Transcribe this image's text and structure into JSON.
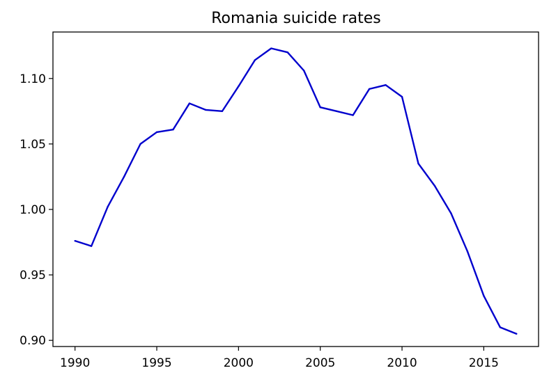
{
  "chart_data": {
    "type": "line",
    "title": "Romania suicide rates",
    "xlabel": "",
    "ylabel": "",
    "xlim": [
      1988.65,
      2018.35
    ],
    "ylim": [
      0.8953,
      1.1355
    ],
    "x_ticks": [
      1990,
      1995,
      2000,
      2005,
      2010,
      2015
    ],
    "x_tick_labels": [
      "1990",
      "1995",
      "2000",
      "2005",
      "2010",
      "2015"
    ],
    "y_ticks": [
      0.9,
      0.95,
      1.0,
      1.05,
      1.1
    ],
    "y_tick_labels": [
      "0.90",
      "0.95",
      "1.00",
      "1.05",
      "1.10"
    ],
    "grid": false,
    "legend": "none",
    "series": [
      {
        "color": "#0000cd",
        "x": [
          1990,
          1991,
          1992,
          1993,
          1994,
          1995,
          1996,
          1997,
          1998,
          1999,
          2000,
          2001,
          2002,
          2003,
          2004,
          2005,
          2006,
          2007,
          2008,
          2009,
          2010,
          2011,
          2012,
          2013,
          2014,
          2015,
          2016,
          2017
        ],
        "values": [
          0.976,
          0.972,
          1.002,
          1.025,
          1.05,
          1.059,
          1.061,
          1.081,
          1.076,
          1.075,
          1.094,
          1.114,
          1.123,
          1.12,
          1.106,
          1.078,
          1.075,
          1.072,
          1.092,
          1.095,
          1.086,
          1.035,
          1.018,
          0.997,
          0.968,
          0.934,
          0.91,
          0.905
        ]
      }
    ]
  }
}
